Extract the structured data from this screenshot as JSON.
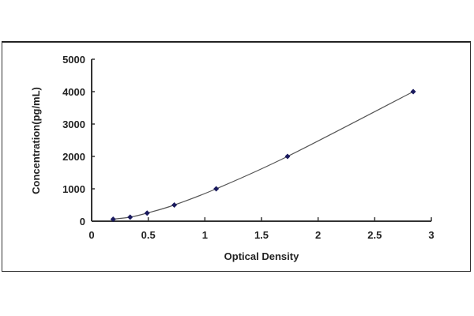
{
  "chart_data": {
    "type": "scatter",
    "title": "",
    "xlabel": "Optical Density",
    "ylabel": "Concentration(pg/mL)",
    "xlim": [
      0,
      3
    ],
    "ylim": [
      0,
      5000
    ],
    "x_ticks": [
      "0",
      "0.5",
      "1",
      "1.5",
      "2",
      "2.5",
      "3"
    ],
    "y_ticks": [
      "0",
      "1000",
      "2000",
      "3000",
      "4000",
      "5000"
    ],
    "grid": false,
    "fit_line": "smooth curve through points",
    "marker_color": "#1a1a5e",
    "line_color": "#555555",
    "series": [
      {
        "x": [
          0.19,
          0.34,
          0.49,
          0.73,
          1.1,
          1.73,
          2.84
        ],
        "y": [
          62.5,
          125,
          250,
          500,
          1000,
          2000,
          4000
        ]
      }
    ]
  }
}
